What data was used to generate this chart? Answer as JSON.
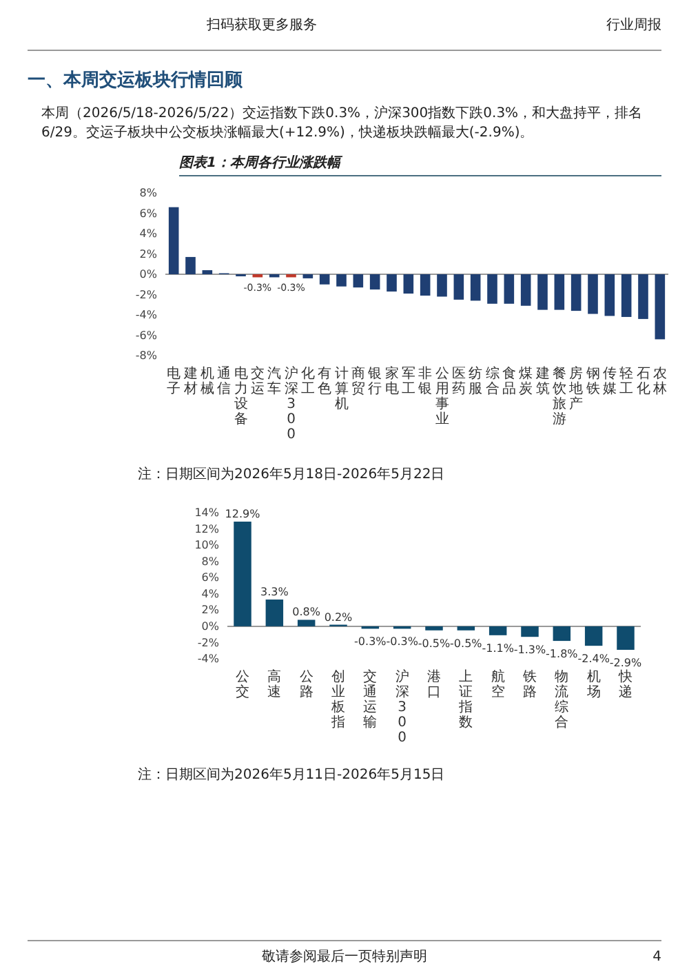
{
  "chart_data": [
    {
      "type": "bar",
      "title": "图表1：本周各行业涨跌幅",
      "annotations": [
        "扫码获取更多服务",
        "行业周报",
        "一、本周交运板块行情回顾",
        "本周（2026/5/18-2026/5/22）交运指数下跌0.3%，沪深300指数下跌0.3%，和大盘持平，排名6/29。交运子板块中公交板块涨幅最大(+12.9%)，快递板块跌幅最大(-2.9%)。",
        "注：日期区间为2026年5月18日-2026年5月22日"
      ],
      "categories": [
        "电子",
        "建材",
        "机械",
        "通信",
        "电力设备",
        "交运",
        "汽车",
        "沪深300",
        "化工",
        "有色",
        "计算机",
        "商贸",
        "银行",
        "家电",
        "军工",
        "非银",
        "公用事业",
        "医药",
        "纺服",
        "综合",
        "食品",
        "煤炭",
        "建筑",
        "餐饮旅游",
        "房地产",
        "钢铁",
        "传媒",
        "轻工",
        "石化",
        "农林"
      ],
      "values": [
        6.6,
        1.7,
        0.4,
        0.1,
        -0.2,
        -0.3,
        -0.3,
        -0.3,
        -0.4,
        -1.0,
        -1.2,
        -1.3,
        -1.5,
        -1.7,
        -1.9,
        -2.1,
        -2.2,
        -2.5,
        -2.6,
        -2.9,
        -2.9,
        -3.1,
        -3.5,
        -3.5,
        -3.6,
        -3.9,
        -4.1,
        -4.2,
        -4.4,
        -6.4
      ],
      "colors": [
        "#1f3f73",
        "#1f3f73",
        "#1f3f73",
        "#1f3f73",
        "#1f3f73",
        "#c0392b",
        "#1f3f73",
        "#c0392b",
        "#1f3f73",
        "#1f3f73",
        "#1f3f73",
        "#1f3f73",
        "#1f3f73",
        "#1f3f73",
        "#1f3f73",
        "#1f3f73",
        "#1f3f73",
        "#1f3f73",
        "#1f3f73",
        "#1f3f73",
        "#1f3f73",
        "#1f3f73",
        "#1f3f73",
        "#1f3f73",
        "#1f3f73",
        "#1f3f73",
        "#1f3f73",
        "#1f3f73",
        "#1f3f73",
        "#1f3f73"
      ],
      "value_labels": [
        null,
        null,
        null,
        null,
        null,
        "-0.3%",
        null,
        "-0.3%",
        null,
        null,
        null,
        null,
        null,
        null,
        null,
        null,
        null,
        null,
        null,
        null,
        null,
        null,
        null,
        null,
        null,
        null,
        null,
        null,
        null,
        null
      ],
      "ylim": [
        -8,
        8
      ],
      "yticks": [
        {
          "value": -8,
          "label": "-8%"
        },
        {
          "value": -6,
          "label": "-6%"
        },
        {
          "value": -4,
          "label": "-4%"
        },
        {
          "value": -2,
          "label": "-2%"
        },
        {
          "value": 0,
          "label": "0%"
        },
        {
          "value": 2,
          "label": "2%"
        },
        {
          "value": 4,
          "label": "4%"
        },
        {
          "value": 6,
          "label": "6%"
        },
        {
          "value": 8,
          "label": "8%"
        }
      ],
      "orientation": "vertical"
    },
    {
      "type": "bar",
      "annotations": [
        "注：日期区间为2026年5月11日-2026年5月15日",
        "敬请参阅最后一页特别声明",
        "4"
      ],
      "categories": [
        "公交",
        "高速",
        "公路",
        "创业板指",
        "交通运输",
        "沪深300",
        "港口",
        "上证指数",
        "航空",
        "铁路",
        "物流综合",
        "机场",
        "快递"
      ],
      "values": [
        12.9,
        3.3,
        0.8,
        0.2,
        -0.3,
        -0.3,
        -0.5,
        -0.5,
        -1.1,
        -1.3,
        -1.8,
        -2.4,
        -2.9
      ],
      "color": "#0f4c6e",
      "value_labels": [
        "12.9%",
        "3.3%",
        "0.8%",
        "0.2%",
        "-0.3%",
        "-0.3%",
        "-0.5%",
        "-0.5%",
        "-1.1%",
        "-1.3%",
        "-1.8%",
        "-2.4%",
        "-2.9%"
      ],
      "ylim": [
        -4,
        14
      ],
      "yticks": [
        {
          "value": -4,
          "label": "-4%"
        },
        {
          "value": -2,
          "label": "-2%"
        },
        {
          "value": 0,
          "label": "0%"
        },
        {
          "value": 2,
          "label": "2%"
        },
        {
          "value": 4,
          "label": "4%"
        },
        {
          "value": 6,
          "label": "6%"
        },
        {
          "value": 8,
          "label": "8%"
        },
        {
          "value": 10,
          "label": "10%"
        },
        {
          "value": 12,
          "label": "12%"
        },
        {
          "value": 14,
          "label": "14%"
        }
      ],
      "orientation": "vertical"
    }
  ]
}
